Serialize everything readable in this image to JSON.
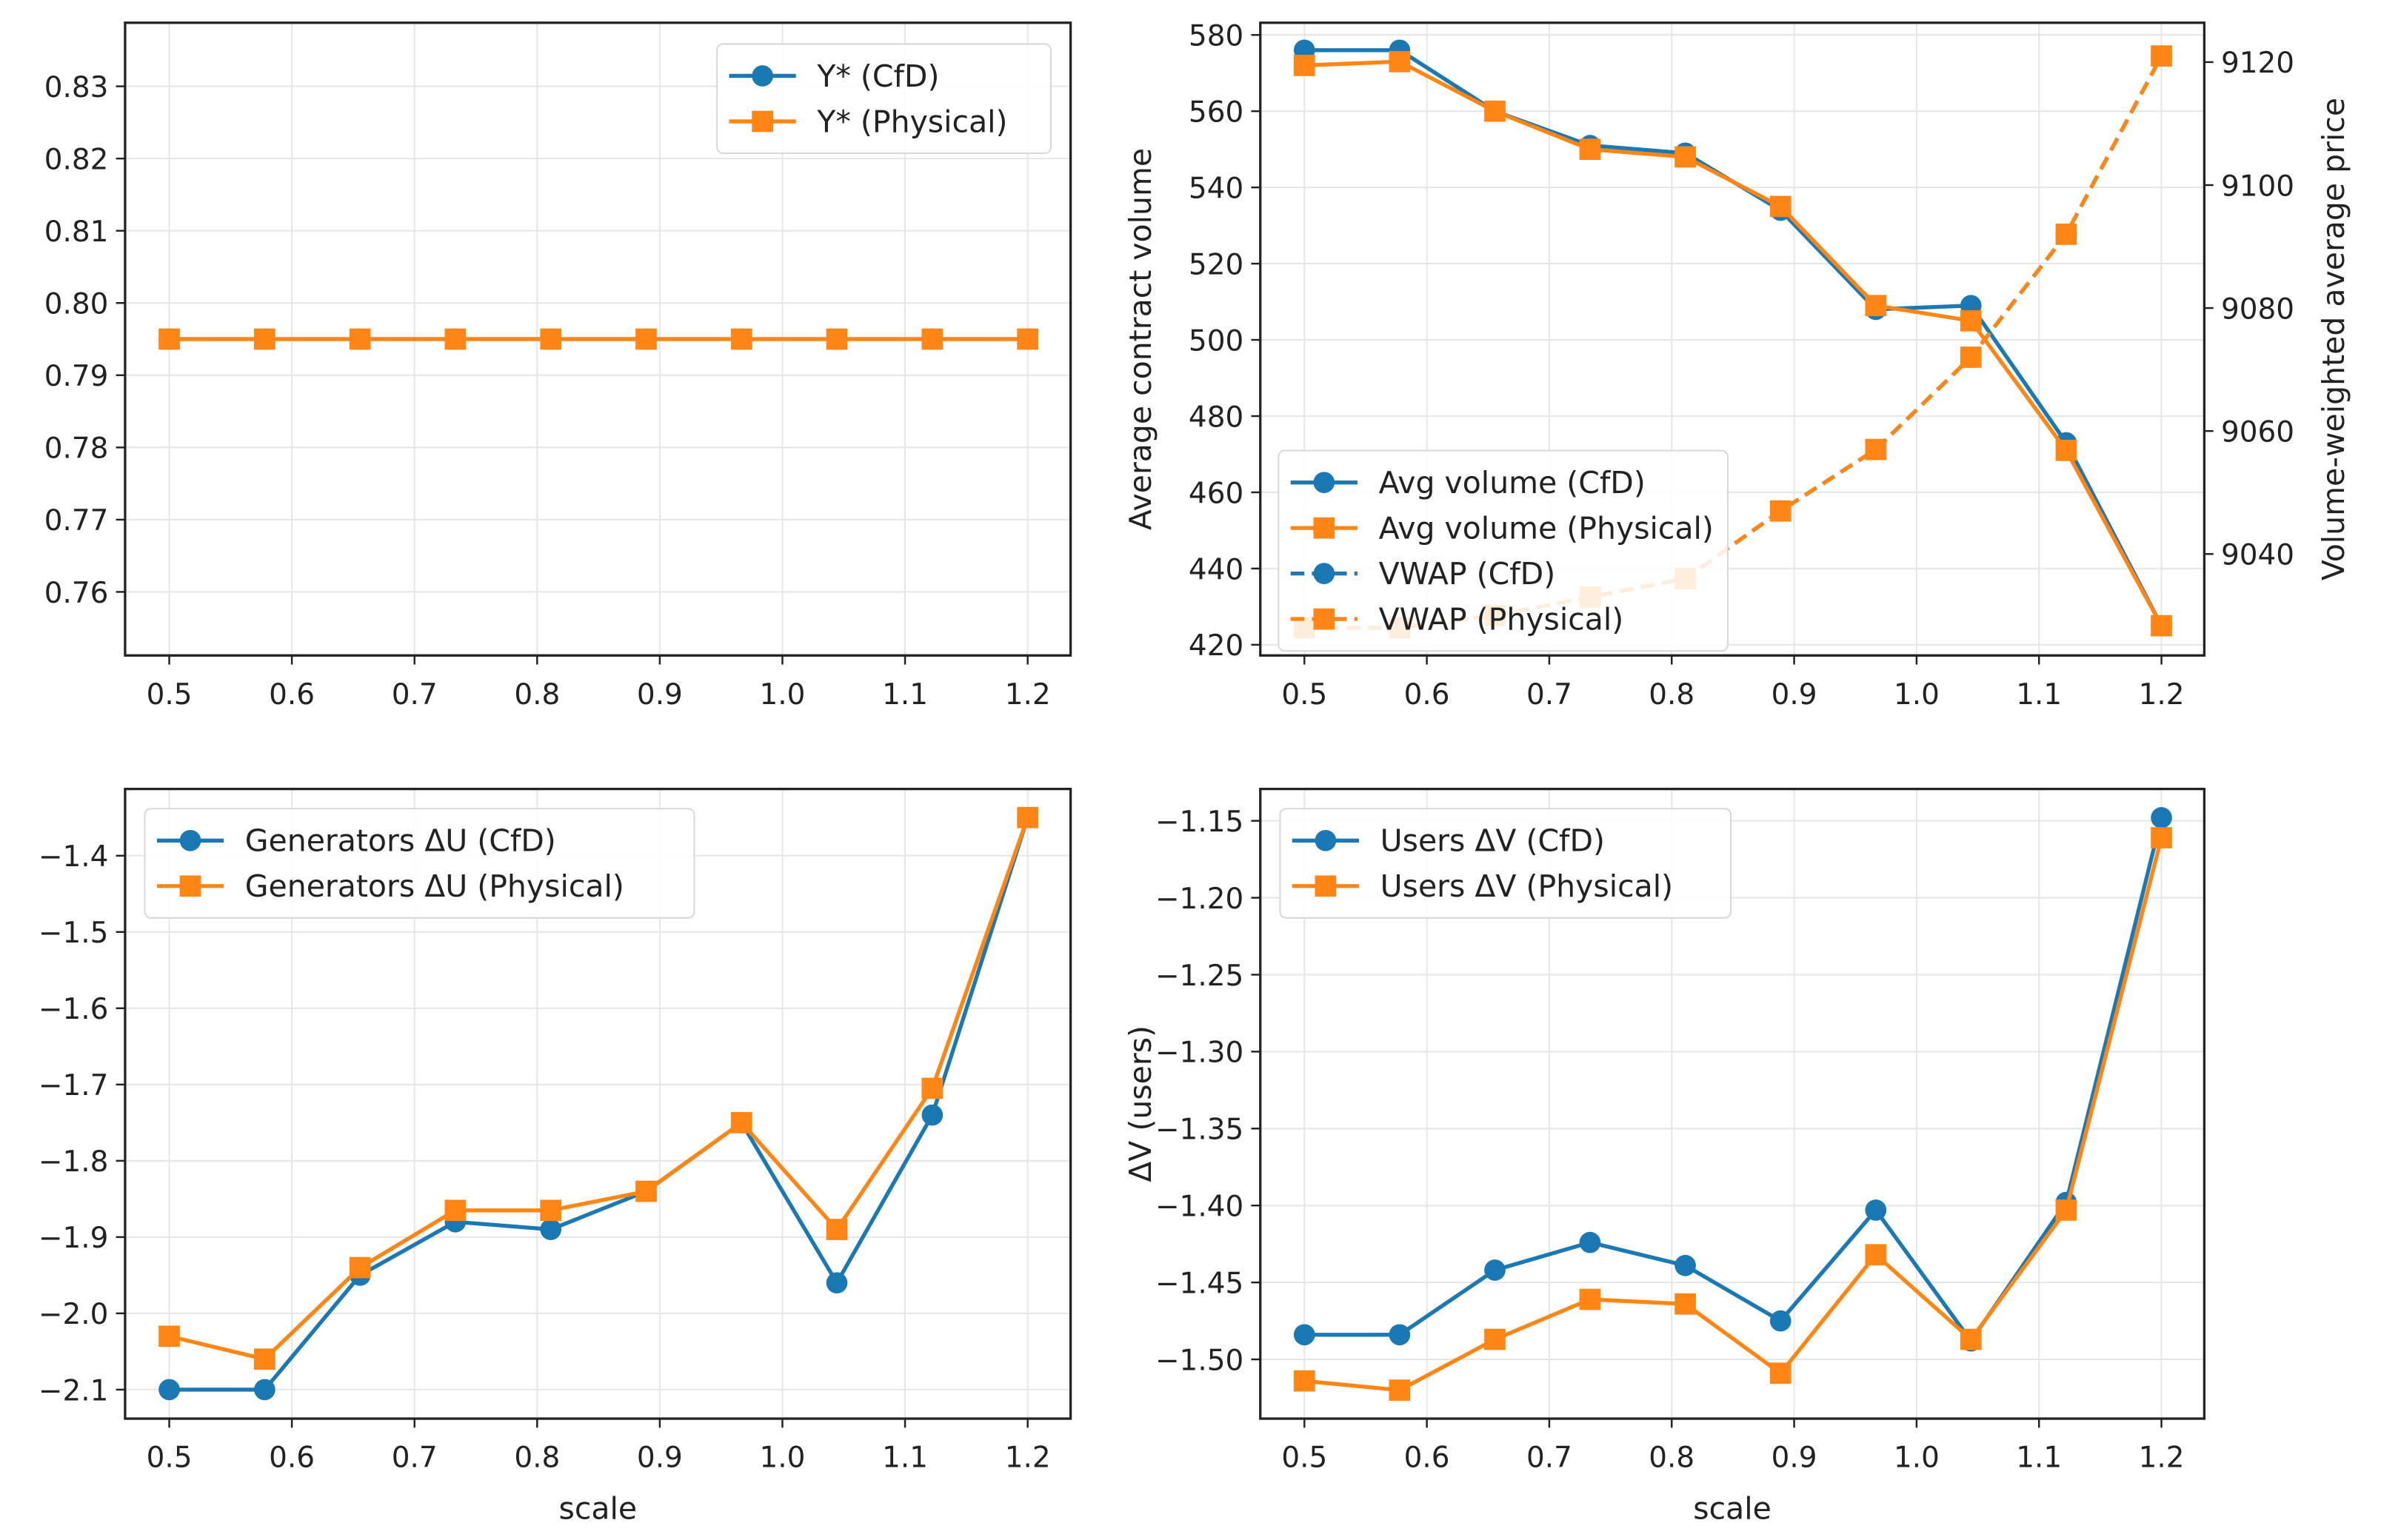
{
  "colors": {
    "cfd": "#1a78b4",
    "physical": "#ff8514"
  },
  "chart_data": [
    {
      "type": "line",
      "x": [
        0.5,
        0.5778,
        0.6556,
        0.7333,
        0.8111,
        0.8889,
        0.9667,
        1.0444,
        1.1222,
        1.2
      ],
      "xlim": [
        0.464,
        1.235
      ],
      "xticks": [
        "0.5",
        "0.6",
        "0.7",
        "0.8",
        "0.9",
        "1.0",
        "1.1",
        "1.2"
      ],
      "xlabel": "",
      "ylabel": "",
      "ylim": [
        0.7512,
        0.8388
      ],
      "yticks": [
        "0.76",
        "0.77",
        "0.78",
        "0.79",
        "0.80",
        "0.81",
        "0.82",
        "0.83"
      ],
      "grid": true,
      "legend_position": "upper right",
      "series": [
        {
          "name": "Y* (CfD)",
          "marker": "circle",
          "style": "solid",
          "values": [
            0.795,
            0.795,
            0.795,
            0.795,
            0.795,
            0.795,
            0.795,
            0.795,
            0.795,
            0.795
          ]
        },
        {
          "name": "Y* (Physical)",
          "marker": "square",
          "style": "solid",
          "values": [
            0.795,
            0.795,
            0.795,
            0.795,
            0.795,
            0.795,
            0.795,
            0.795,
            0.795,
            0.795
          ]
        }
      ]
    },
    {
      "type": "line",
      "x": [
        0.5,
        0.5778,
        0.6556,
        0.7333,
        0.8111,
        0.8889,
        0.9667,
        1.0444,
        1.1222,
        1.2
      ],
      "xlim": [
        0.464,
        1.235
      ],
      "xticks": [
        "0.5",
        "0.6",
        "0.7",
        "0.8",
        "0.9",
        "1.0",
        "1.1",
        "1.2"
      ],
      "xlabel": "",
      "ylabel": "Average contract volume",
      "ylim": [
        417.2,
        583.2
      ],
      "yticks": [
        "420",
        "440",
        "460",
        "480",
        "500",
        "520",
        "540",
        "560",
        "580"
      ],
      "y2label": "Volume-weighted average price",
      "y2lim": [
        9023.5,
        9126.4
      ],
      "y2ticks": [
        "9040",
        "9060",
        "9080",
        "9100",
        "9120"
      ],
      "grid": true,
      "legend_position": "lower left",
      "series": [
        {
          "name": "Avg volume (CfD)",
          "marker": "circle",
          "style": "solid",
          "axis": "left",
          "values": [
            576,
            576,
            560,
            551,
            549,
            534,
            508,
            509,
            473,
            425
          ]
        },
        {
          "name": "Avg volume (Physical)",
          "marker": "square",
          "style": "solid",
          "axis": "left",
          "values": [
            572,
            573,
            560,
            550,
            548,
            535,
            509,
            505,
            471,
            425
          ]
        },
        {
          "name": "VWAP (CfD)",
          "marker": "circle",
          "style": "dashed",
          "axis": "right",
          "values": [
            9028,
            9028,
            9030,
            9033,
            9036,
            9047,
            9057,
            9072,
            9092,
            9121
          ]
        },
        {
          "name": "VWAP (Physical)",
          "marker": "square",
          "style": "dashed",
          "axis": "right",
          "values": [
            9028,
            9028,
            9030,
            9033,
            9036,
            9047,
            9057,
            9072,
            9092,
            9121
          ]
        }
      ]
    },
    {
      "type": "line",
      "x": [
        0.5,
        0.5778,
        0.6556,
        0.7333,
        0.8111,
        0.8889,
        0.9667,
        1.0444,
        1.1222,
        1.2
      ],
      "xlim": [
        0.464,
        1.235
      ],
      "xticks": [
        "0.5",
        "0.6",
        "0.7",
        "0.8",
        "0.9",
        "1.0",
        "1.1",
        "1.2"
      ],
      "xlabel": "scale",
      "ylabel": "",
      "ylim": [
        -2.138,
        -1.3125
      ],
      "yticks": [
        "−2.1",
        "−2.0",
        "−1.9",
        "−1.8",
        "−1.7",
        "−1.6",
        "−1.5",
        "−1.4"
      ],
      "grid": true,
      "legend_position": "upper left",
      "series": [
        {
          "name": "Generators ΔU (CfD)",
          "marker": "circle",
          "style": "solid",
          "values": [
            -2.1,
            -2.1,
            -1.95,
            -1.88,
            -1.89,
            -1.84,
            -1.75,
            -1.96,
            -1.74,
            -1.35
          ]
        },
        {
          "name": "Generators ΔU (Physical)",
          "marker": "square",
          "style": "solid",
          "values": [
            -2.03,
            -2.06,
            -1.94,
            -1.865,
            -1.865,
            -1.84,
            -1.75,
            -1.89,
            -1.705,
            -1.35
          ]
        }
      ]
    },
    {
      "type": "line",
      "x": [
        0.5,
        0.5778,
        0.6556,
        0.7333,
        0.8111,
        0.8889,
        0.9667,
        1.0444,
        1.1222,
        1.2
      ],
      "xlim": [
        0.464,
        1.235
      ],
      "xticks": [
        "0.5",
        "0.6",
        "0.7",
        "0.8",
        "0.9",
        "1.0",
        "1.1",
        "1.2"
      ],
      "xlabel": "scale",
      "ylabel": "ΔV (users)",
      "ylim": [
        -1.5385,
        -1.1293
      ],
      "yticks": [
        "−1.50",
        "−1.45",
        "−1.40",
        "−1.35",
        "−1.30",
        "−1.25",
        "−1.20",
        "−1.15"
      ],
      "grid": true,
      "legend_position": "upper left",
      "series": [
        {
          "name": "Users ΔV (CfD)",
          "marker": "circle",
          "style": "solid",
          "values": [
            -1.484,
            -1.484,
            -1.442,
            -1.424,
            -1.439,
            -1.475,
            -1.403,
            -1.488,
            -1.398,
            -1.148
          ]
        },
        {
          "name": "Users ΔV (Physical)",
          "marker": "square",
          "style": "solid",
          "values": [
            -1.514,
            -1.52,
            -1.487,
            -1.461,
            -1.464,
            -1.509,
            -1.432,
            -1.487,
            -1.403,
            -1.161
          ]
        }
      ]
    }
  ]
}
